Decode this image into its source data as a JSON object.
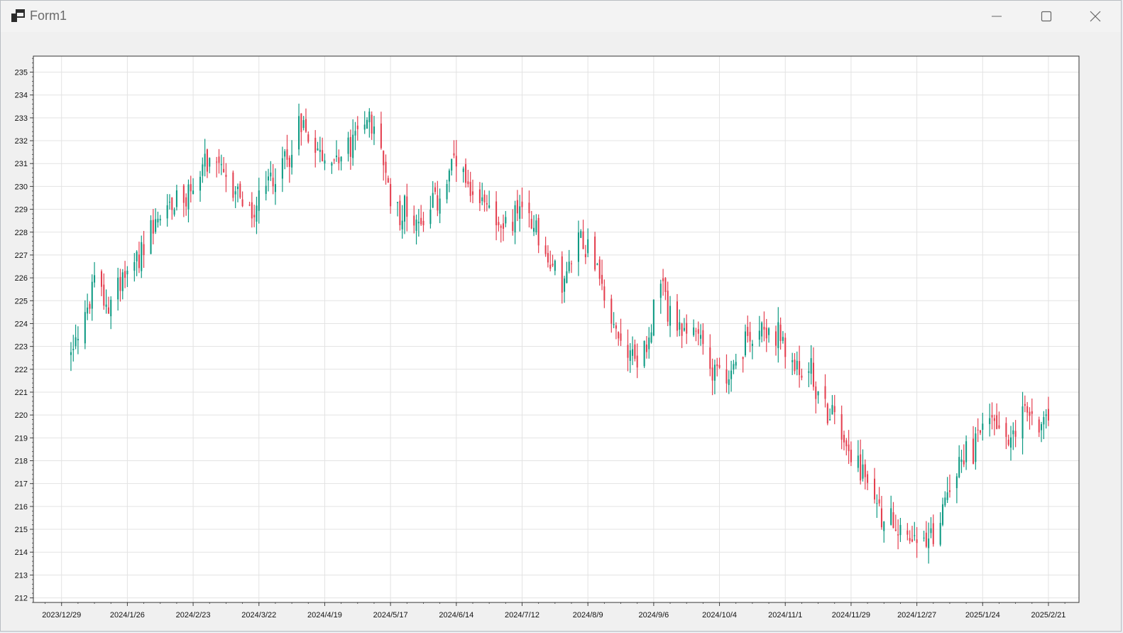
{
  "window": {
    "title": "Form1",
    "icons": {
      "app": "app-icon",
      "minimize": "minimize-icon",
      "maximize": "maximize-icon",
      "close": "close-icon"
    }
  },
  "colors": {
    "up": "#0e9a83",
    "down": "#e43f4f",
    "grid": "#e3e3e3",
    "axis": "#444444"
  },
  "chart_data": {
    "type": "candlestick",
    "title": "",
    "xlabel": "",
    "ylabel": "",
    "ylim": [
      211.8,
      235.7
    ],
    "xlim": [
      "2023-12-17",
      "2025-03-06"
    ],
    "grid": true,
    "y_ticks": [
      212,
      213,
      214,
      215,
      216,
      217,
      218,
      219,
      220,
      221,
      222,
      223,
      224,
      225,
      226,
      227,
      228,
      229,
      230,
      231,
      232,
      233,
      234,
      235
    ],
    "x_ticks": [
      {
        "date": "2023-12-29",
        "label": "2023/12/29"
      },
      {
        "date": "2024-01-26",
        "label": "2024/1/26"
      },
      {
        "date": "2024-02-23",
        "label": "2024/2/23"
      },
      {
        "date": "2024-03-22",
        "label": "2024/3/22"
      },
      {
        "date": "2024-04-19",
        "label": "2024/4/19"
      },
      {
        "date": "2024-05-17",
        "label": "2024/5/17"
      },
      {
        "date": "2024-06-14",
        "label": "2024/6/14"
      },
      {
        "date": "2024-07-12",
        "label": "2024/7/12"
      },
      {
        "date": "2024-08-09",
        "label": "2024/8/9"
      },
      {
        "date": "2024-09-06",
        "label": "2024/9/6"
      },
      {
        "date": "2024-10-04",
        "label": "2024/10/4"
      },
      {
        "date": "2024-11-01",
        "label": "2024/11/1"
      },
      {
        "date": "2024-11-29",
        "label": "2024/11/29"
      },
      {
        "date": "2024-12-27",
        "label": "2024/12/27"
      },
      {
        "date": "2025-01-24",
        "label": "2025/1/24"
      },
      {
        "date": "2025-02-21",
        "label": "2025/2/21"
      }
    ],
    "anchors": [
      [
        "2024-01-02",
        222.8
      ],
      [
        "2024-01-09",
        224.5
      ],
      [
        "2024-01-12",
        226.0
      ],
      [
        "2024-01-17",
        225.0
      ],
      [
        "2024-01-24",
        226.0
      ],
      [
        "2024-01-31",
        226.8
      ],
      [
        "2024-02-07",
        228.2
      ],
      [
        "2024-02-14",
        229.4
      ],
      [
        "2024-02-21",
        229.5
      ],
      [
        "2024-02-27",
        231.0
      ],
      [
        "2024-03-04",
        230.8
      ],
      [
        "2024-03-08",
        230.0
      ],
      [
        "2024-03-14",
        229.5
      ],
      [
        "2024-03-19",
        228.8
      ],
      [
        "2024-03-26",
        230.3
      ],
      [
        "2024-04-02",
        231.0
      ],
      [
        "2024-04-09",
        233.0
      ],
      [
        "2024-04-15",
        232.0
      ],
      [
        "2024-04-22",
        231.0
      ],
      [
        "2024-04-29",
        231.5
      ],
      [
        "2024-05-06",
        233.2
      ],
      [
        "2024-05-13",
        231.5
      ],
      [
        "2024-05-16",
        229.7
      ],
      [
        "2024-05-22",
        229.0
      ],
      [
        "2024-05-31",
        228.5
      ],
      [
        "2024-06-07",
        229.5
      ],
      [
        "2024-06-13",
        231.0
      ],
      [
        "2024-06-20",
        229.3
      ],
      [
        "2024-06-27",
        229.5
      ],
      [
        "2024-07-03",
        228.0
      ],
      [
        "2024-07-10",
        229.0
      ],
      [
        "2024-07-17",
        228.5
      ],
      [
        "2024-07-24",
        226.5
      ],
      [
        "2024-07-31",
        226.0
      ],
      [
        "2024-08-06",
        228.0
      ],
      [
        "2024-08-12",
        227.0
      ],
      [
        "2024-08-19",
        224.0
      ],
      [
        "2024-08-26",
        222.5
      ],
      [
        "2024-09-02",
        223.0
      ],
      [
        "2024-09-09",
        225.5
      ],
      [
        "2024-09-16",
        223.5
      ],
      [
        "2024-09-23",
        223.8
      ],
      [
        "2024-09-30",
        222.5
      ],
      [
        "2024-10-07",
        221.3
      ],
      [
        "2024-10-14",
        223.0
      ],
      [
        "2024-10-21",
        224.2
      ],
      [
        "2024-10-28",
        223.5
      ],
      [
        "2024-11-04",
        222.0
      ],
      [
        "2024-11-11",
        222.0
      ],
      [
        "2024-11-18",
        220.5
      ],
      [
        "2024-11-25",
        219.5
      ],
      [
        "2024-12-02",
        217.8
      ],
      [
        "2024-12-09",
        216.3
      ],
      [
        "2024-12-16",
        215.3
      ],
      [
        "2024-12-23",
        215.0
      ],
      [
        "2024-12-31",
        214.2
      ],
      [
        "2025-01-06",
        215.5
      ],
      [
        "2025-01-13",
        218.0
      ],
      [
        "2025-01-20",
        218.5
      ],
      [
        "2025-01-27",
        220.0
      ],
      [
        "2025-02-03",
        219.0
      ],
      [
        "2025-02-10",
        220.0
      ],
      [
        "2025-02-17",
        219.8
      ],
      [
        "2025-02-21",
        220.3
      ]
    ]
  }
}
